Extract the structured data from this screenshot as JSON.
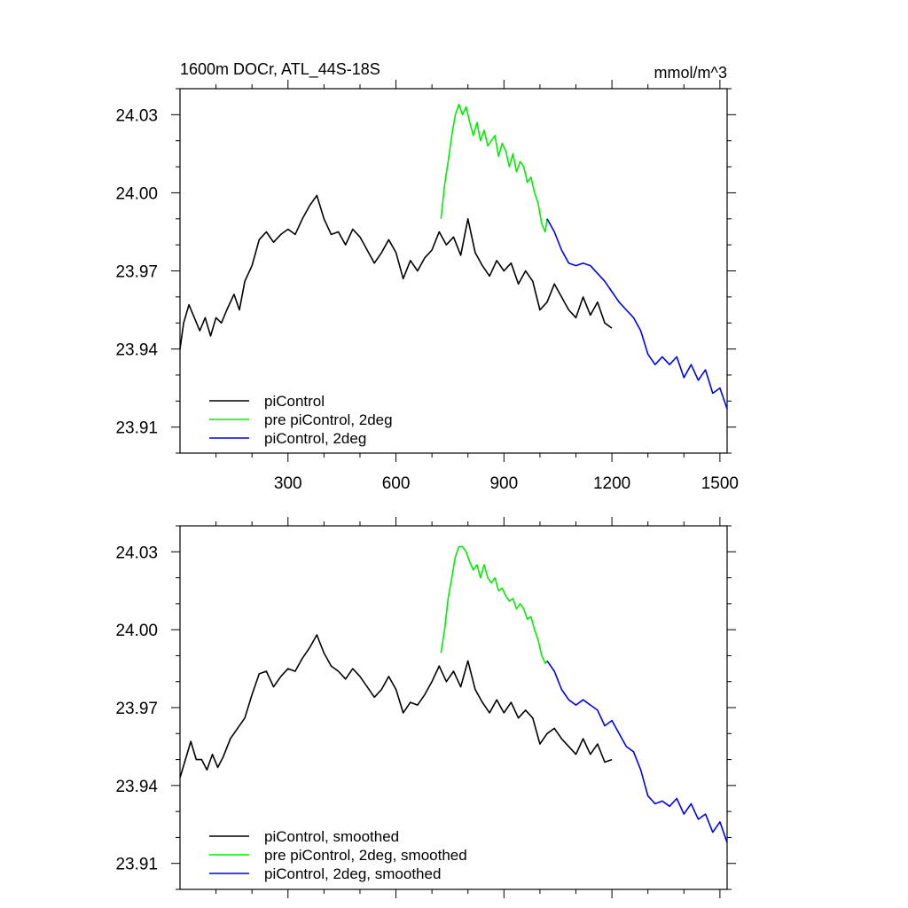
{
  "title": "1600m DOCr, ATL_44S-18S",
  "units": "mmol/m^3",
  "chart_data": [
    {
      "type": "line",
      "panel": "top",
      "title": "1600m DOCr, ATL_44S-18S",
      "units_label": "mmol/m^3",
      "xlim": [
        0,
        1520
      ],
      "ylim": [
        23.9,
        24.04
      ],
      "xticks": [
        300,
        600,
        900,
        1200,
        1500
      ],
      "xtick_labels": [
        "300",
        "600",
        "900",
        "1200",
        "1500"
      ],
      "yticks": [
        23.91,
        23.94,
        23.97,
        24.0,
        24.03
      ],
      "ytick_labels": [
        "23.91",
        "23.94",
        "23.97",
        "24.00",
        "24.03"
      ],
      "show_x_labels": true,
      "legend_position": "bottom-left",
      "series": [
        {
          "name": "piControl",
          "color": "#000000",
          "x": [
            0,
            10,
            25,
            40,
            55,
            70,
            85,
            100,
            115,
            130,
            150,
            165,
            180,
            200,
            220,
            240,
            260,
            280,
            300,
            320,
            340,
            360,
            380,
            400,
            420,
            440,
            460,
            480,
            500,
            520,
            540,
            560,
            580,
            600,
            620,
            640,
            660,
            680,
            700,
            720,
            740,
            760,
            780,
            800,
            820,
            840,
            860,
            880,
            900,
            920,
            940,
            960,
            980,
            1000,
            1020,
            1040,
            1060,
            1080,
            1100,
            1120,
            1140,
            1160,
            1180,
            1200
          ],
          "y": [
            23.94,
            23.95,
            23.957,
            23.952,
            23.947,
            23.952,
            23.945,
            23.952,
            23.95,
            23.955,
            23.961,
            23.955,
            23.966,
            23.972,
            23.982,
            23.985,
            23.981,
            23.984,
            23.986,
            23.984,
            23.99,
            23.995,
            23.999,
            23.99,
            23.984,
            23.985,
            23.98,
            23.986,
            23.983,
            23.978,
            23.973,
            23.977,
            23.982,
            23.977,
            23.967,
            23.974,
            23.97,
            23.975,
            23.978,
            23.985,
            23.98,
            23.983,
            23.976,
            23.99,
            23.977,
            23.972,
            23.968,
            23.974,
            23.97,
            23.973,
            23.965,
            23.97,
            23.966,
            23.955,
            23.958,
            23.965,
            23.96,
            23.955,
            23.952,
            23.96,
            23.953,
            23.958,
            23.95,
            23.948
          ]
        },
        {
          "name": "pre piControl, 2deg",
          "color": "#00ee00",
          "x": [
            725,
            735,
            745,
            755,
            765,
            775,
            785,
            795,
            805,
            815,
            825,
            835,
            845,
            855,
            865,
            875,
            885,
            895,
            905,
            915,
            925,
            935,
            945,
            955,
            965,
            975,
            985,
            995,
            1005,
            1015,
            1020
          ],
          "y": [
            23.99,
            24.003,
            24.012,
            24.022,
            24.03,
            24.034,
            24.03,
            24.033,
            24.027,
            24.022,
            24.027,
            24.02,
            24.024,
            24.018,
            24.02,
            24.022,
            24.014,
            24.019,
            24.016,
            24.01,
            24.015,
            24.008,
            24.012,
            24.01,
            24.004,
            24.006,
            24.0,
            23.996,
            23.988,
            23.985,
            23.99
          ]
        },
        {
          "name": "piControl, 2deg",
          "color": "#0000ee",
          "x": [
            1020,
            1040,
            1060,
            1080,
            1100,
            1120,
            1140,
            1160,
            1180,
            1200,
            1220,
            1240,
            1260,
            1280,
            1300,
            1320,
            1340,
            1360,
            1380,
            1400,
            1420,
            1440,
            1460,
            1480,
            1500,
            1520
          ],
          "y": [
            23.99,
            23.985,
            23.978,
            23.973,
            23.972,
            23.973,
            23.972,
            23.969,
            23.966,
            23.962,
            23.958,
            23.955,
            23.952,
            23.947,
            23.938,
            23.934,
            23.937,
            23.934,
            23.937,
            23.929,
            23.934,
            23.928,
            23.932,
            23.923,
            23.925,
            23.917
          ]
        }
      ]
    },
    {
      "type": "line",
      "panel": "bottom",
      "xlim": [
        0,
        1520
      ],
      "ylim": [
        23.9,
        24.04
      ],
      "xticks": [
        300,
        600,
        900,
        1200,
        1500
      ],
      "yticks": [
        23.91,
        23.94,
        23.97,
        24.0,
        24.03
      ],
      "ytick_labels": [
        "23.91",
        "23.94",
        "23.97",
        "24.00",
        "24.03"
      ],
      "show_x_labels": false,
      "legend_position": "bottom-left",
      "series": [
        {
          "name": "piControl, smoothed",
          "color": "#000000",
          "x": [
            0,
            15,
            30,
            45,
            60,
            75,
            90,
            105,
            120,
            140,
            160,
            180,
            200,
            220,
            240,
            260,
            280,
            300,
            320,
            340,
            360,
            380,
            400,
            420,
            440,
            460,
            480,
            500,
            520,
            540,
            560,
            580,
            600,
            620,
            640,
            660,
            680,
            700,
            720,
            740,
            760,
            780,
            800,
            820,
            840,
            860,
            880,
            900,
            920,
            940,
            960,
            980,
            1000,
            1020,
            1040,
            1060,
            1080,
            1100,
            1120,
            1140,
            1160,
            1180,
            1200
          ],
          "y": [
            23.943,
            23.95,
            23.957,
            23.95,
            23.95,
            23.946,
            23.952,
            23.947,
            23.951,
            23.958,
            23.962,
            23.966,
            23.975,
            23.983,
            23.984,
            23.978,
            23.982,
            23.985,
            23.984,
            23.989,
            23.993,
            23.998,
            23.991,
            23.986,
            23.984,
            23.981,
            23.985,
            23.982,
            23.978,
            23.974,
            23.977,
            23.982,
            23.977,
            23.968,
            23.972,
            23.971,
            23.975,
            23.98,
            23.986,
            23.98,
            23.984,
            23.978,
            23.988,
            23.977,
            23.972,
            23.968,
            23.973,
            23.968,
            23.972,
            23.966,
            23.969,
            23.966,
            23.956,
            23.96,
            23.962,
            23.958,
            23.955,
            23.952,
            23.958,
            23.952,
            23.956,
            23.949,
            23.95
          ]
        },
        {
          "name": "pre piControl, 2deg, smoothed",
          "color": "#00ee00",
          "x": [
            725,
            735,
            745,
            755,
            765,
            775,
            785,
            795,
            805,
            815,
            825,
            835,
            845,
            855,
            865,
            875,
            885,
            895,
            905,
            915,
            925,
            935,
            945,
            955,
            965,
            975,
            985,
            995,
            1005,
            1015,
            1020
          ],
          "y": [
            23.991,
            24.0,
            24.012,
            24.02,
            24.028,
            24.032,
            24.032,
            24.03,
            24.026,
            24.023,
            24.025,
            24.02,
            24.025,
            24.02,
            24.018,
            24.02,
            24.015,
            24.016,
            24.013,
            24.011,
            24.012,
            24.008,
            24.01,
            24.008,
            24.004,
            24.005,
            24.0,
            23.996,
            23.99,
            23.987,
            23.988
          ]
        },
        {
          "name": "piControl, 2deg, smoothed",
          "color": "#0000ee",
          "x": [
            1020,
            1040,
            1060,
            1080,
            1100,
            1120,
            1140,
            1160,
            1180,
            1200,
            1220,
            1240,
            1260,
            1280,
            1300,
            1320,
            1340,
            1360,
            1380,
            1400,
            1420,
            1440,
            1460,
            1480,
            1500,
            1520
          ],
          "y": [
            23.988,
            23.984,
            23.977,
            23.973,
            23.971,
            23.973,
            23.971,
            23.969,
            23.963,
            23.965,
            23.96,
            23.955,
            23.953,
            23.946,
            23.936,
            23.933,
            23.934,
            23.932,
            23.935,
            23.929,
            23.933,
            23.927,
            23.929,
            23.922,
            23.926,
            23.918
          ]
        }
      ]
    }
  ]
}
